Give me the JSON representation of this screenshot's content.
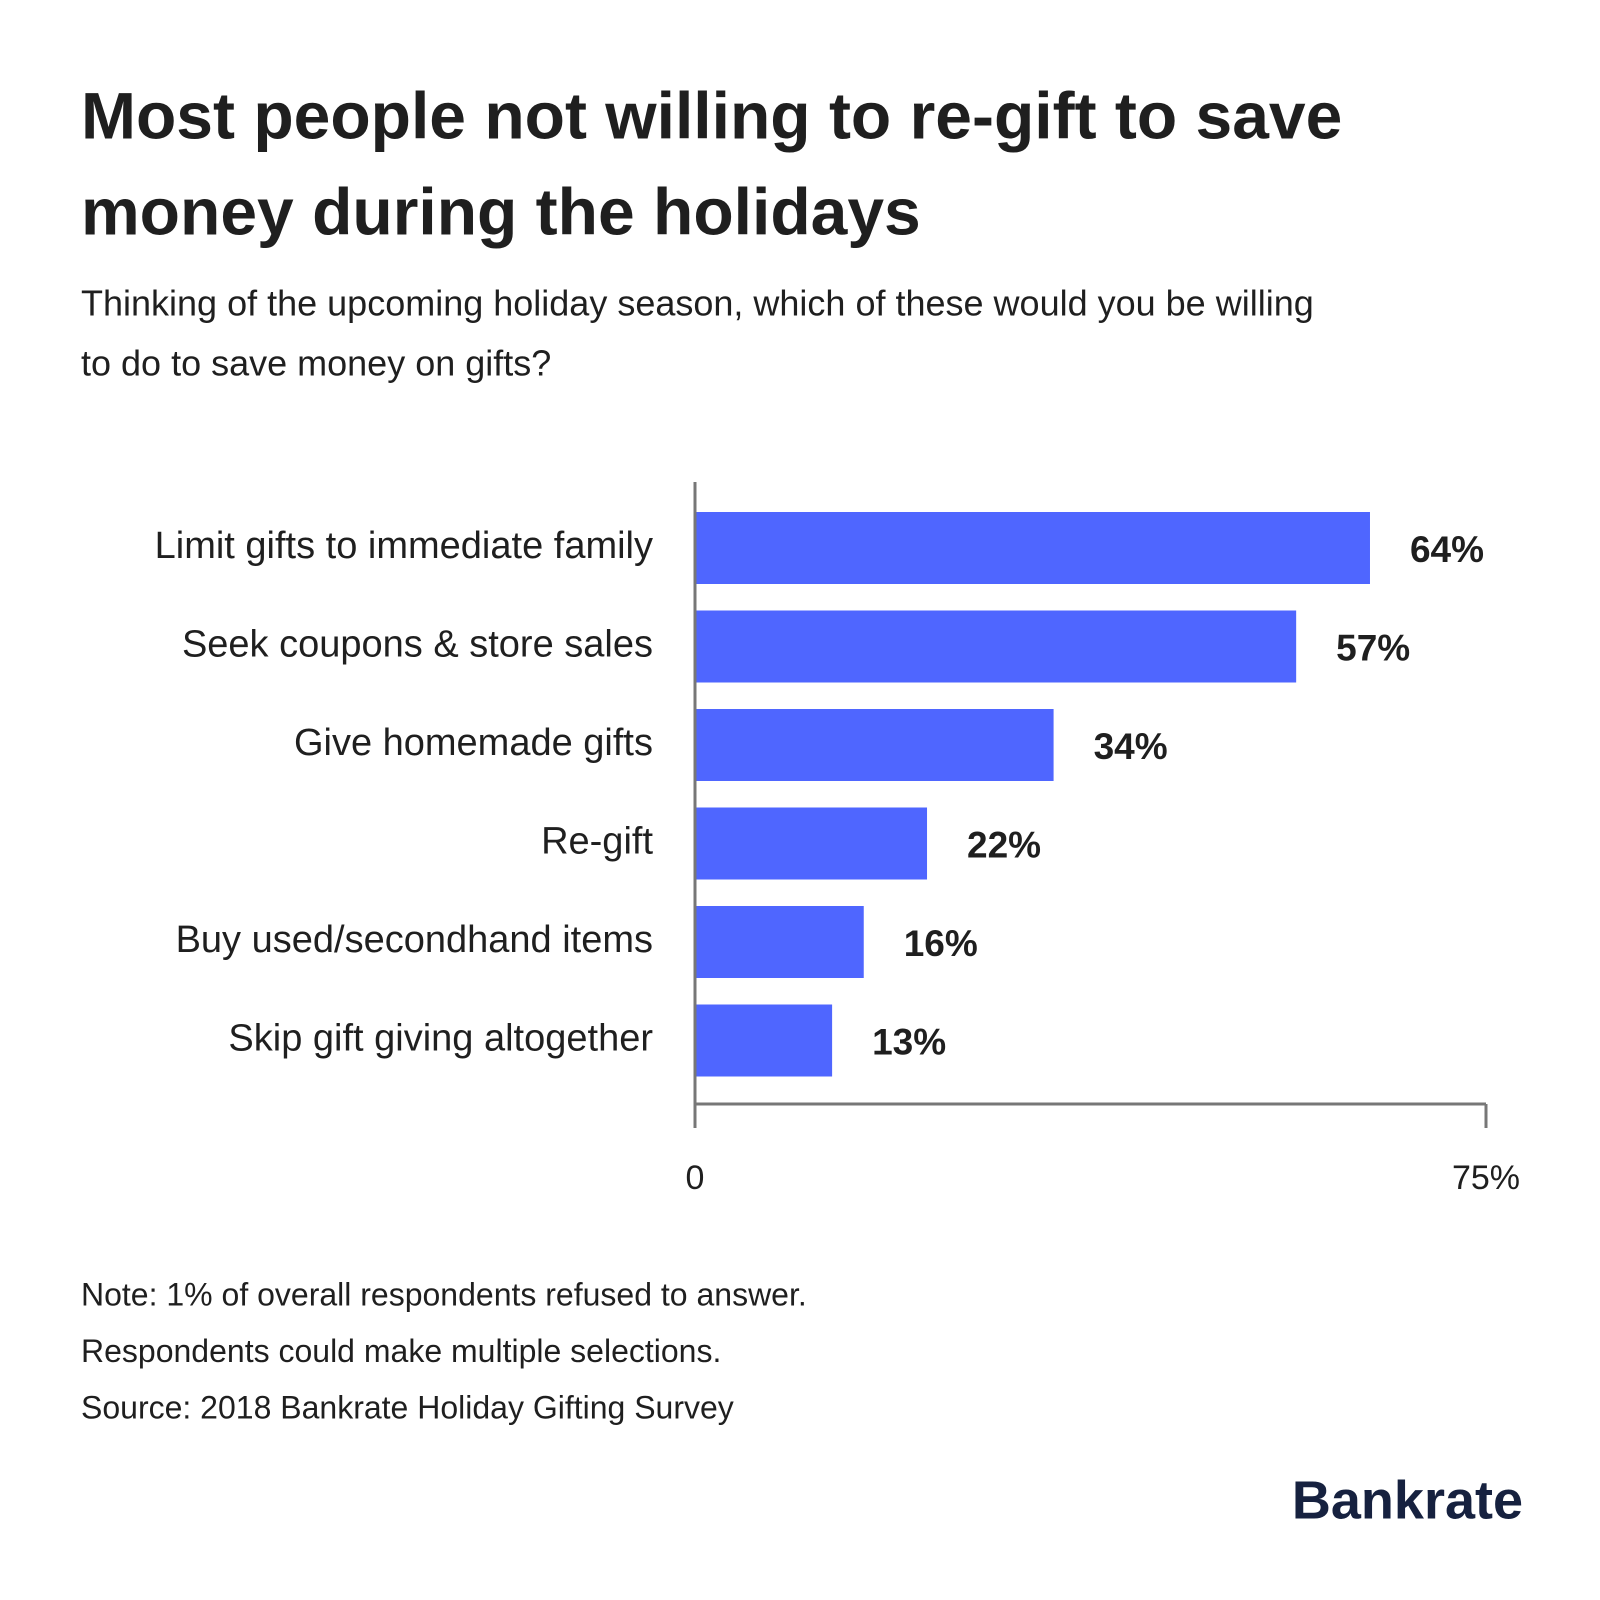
{
  "chart_data": {
    "type": "bar",
    "orientation": "horizontal",
    "title": [
      "Most people not willing to re-gift to save",
      "money during the holidays"
    ],
    "subtitle": [
      "Thinking of the upcoming holiday season, which of these would you be willing",
      "to do to save money on gifts?"
    ],
    "categories": [
      "Limit gifts to immediate family",
      "Seek coupons & store sales",
      "Give homemade gifts",
      "Re-gift",
      "Buy used/secondhand items",
      "Skip gift giving altogether"
    ],
    "values": [
      64,
      57,
      34,
      22,
      16,
      13
    ],
    "value_labels": [
      "64%",
      "57%",
      "34%",
      "22%",
      "16%",
      "13%"
    ],
    "color": "#4f66ff",
    "xlim": [
      0,
      75
    ],
    "xticks": [
      0,
      {
        "value": 75,
        "label": "75%"
      }
    ],
    "grid": false,
    "notes": [
      "Note: 1% of overall respondents refused to answer.",
      "Respondents could make multiple selections.",
      "Source: 2018 Bankrate Holiday Gifting Survey"
    ],
    "logo": "Bankrate"
  }
}
